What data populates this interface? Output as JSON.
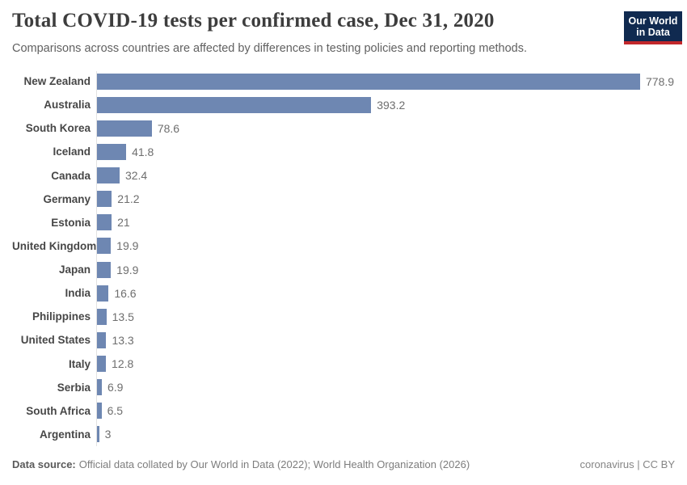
{
  "header": {
    "title": "Total COVID-19 tests per confirmed case, Dec 31, 2020",
    "subtitle": "Comparisons across countries are affected by differences in testing policies and reporting methods.",
    "logo": {
      "line1": "Our World",
      "line2": "in Data"
    }
  },
  "chart_data": {
    "type": "bar",
    "orientation": "horizontal",
    "title": "Total COVID-19 tests per confirmed case, Dec 31, 2020",
    "xlabel": "",
    "ylabel": "",
    "xlim": [
      0,
      778.9
    ],
    "grid": false,
    "legend": "none",
    "bar_color": "#6e87b2",
    "categories": [
      "New Zealand",
      "Australia",
      "South Korea",
      "Iceland",
      "Canada",
      "Germany",
      "Estonia",
      "United Kingdom",
      "Japan",
      "India",
      "Philippines",
      "United States",
      "Italy",
      "Serbia",
      "South Africa",
      "Argentina"
    ],
    "values": [
      778.9,
      393.2,
      78.6,
      41.8,
      32.4,
      21.2,
      21,
      19.9,
      19.9,
      16.6,
      13.5,
      13.3,
      12.8,
      6.9,
      6.5,
      3
    ],
    "value_labels": [
      "778.9",
      "393.2",
      "78.6",
      "41.8",
      "32.4",
      "21.2",
      "21",
      "19.9",
      "19.9",
      "16.6",
      "13.5",
      "13.3",
      "12.8",
      "6.9",
      "6.5",
      "3"
    ]
  },
  "colors": {
    "bar": "#6e87b2",
    "logo_navy": "#102a50",
    "logo_red": "#c2272b",
    "axis_line": "#e2e2e2"
  },
  "footer": {
    "source_label": "Data source:",
    "source_text": "Official data collated by Our World in Data (2022); World Health Organization (2026)",
    "right_text": "coronavirus | CC BY"
  }
}
